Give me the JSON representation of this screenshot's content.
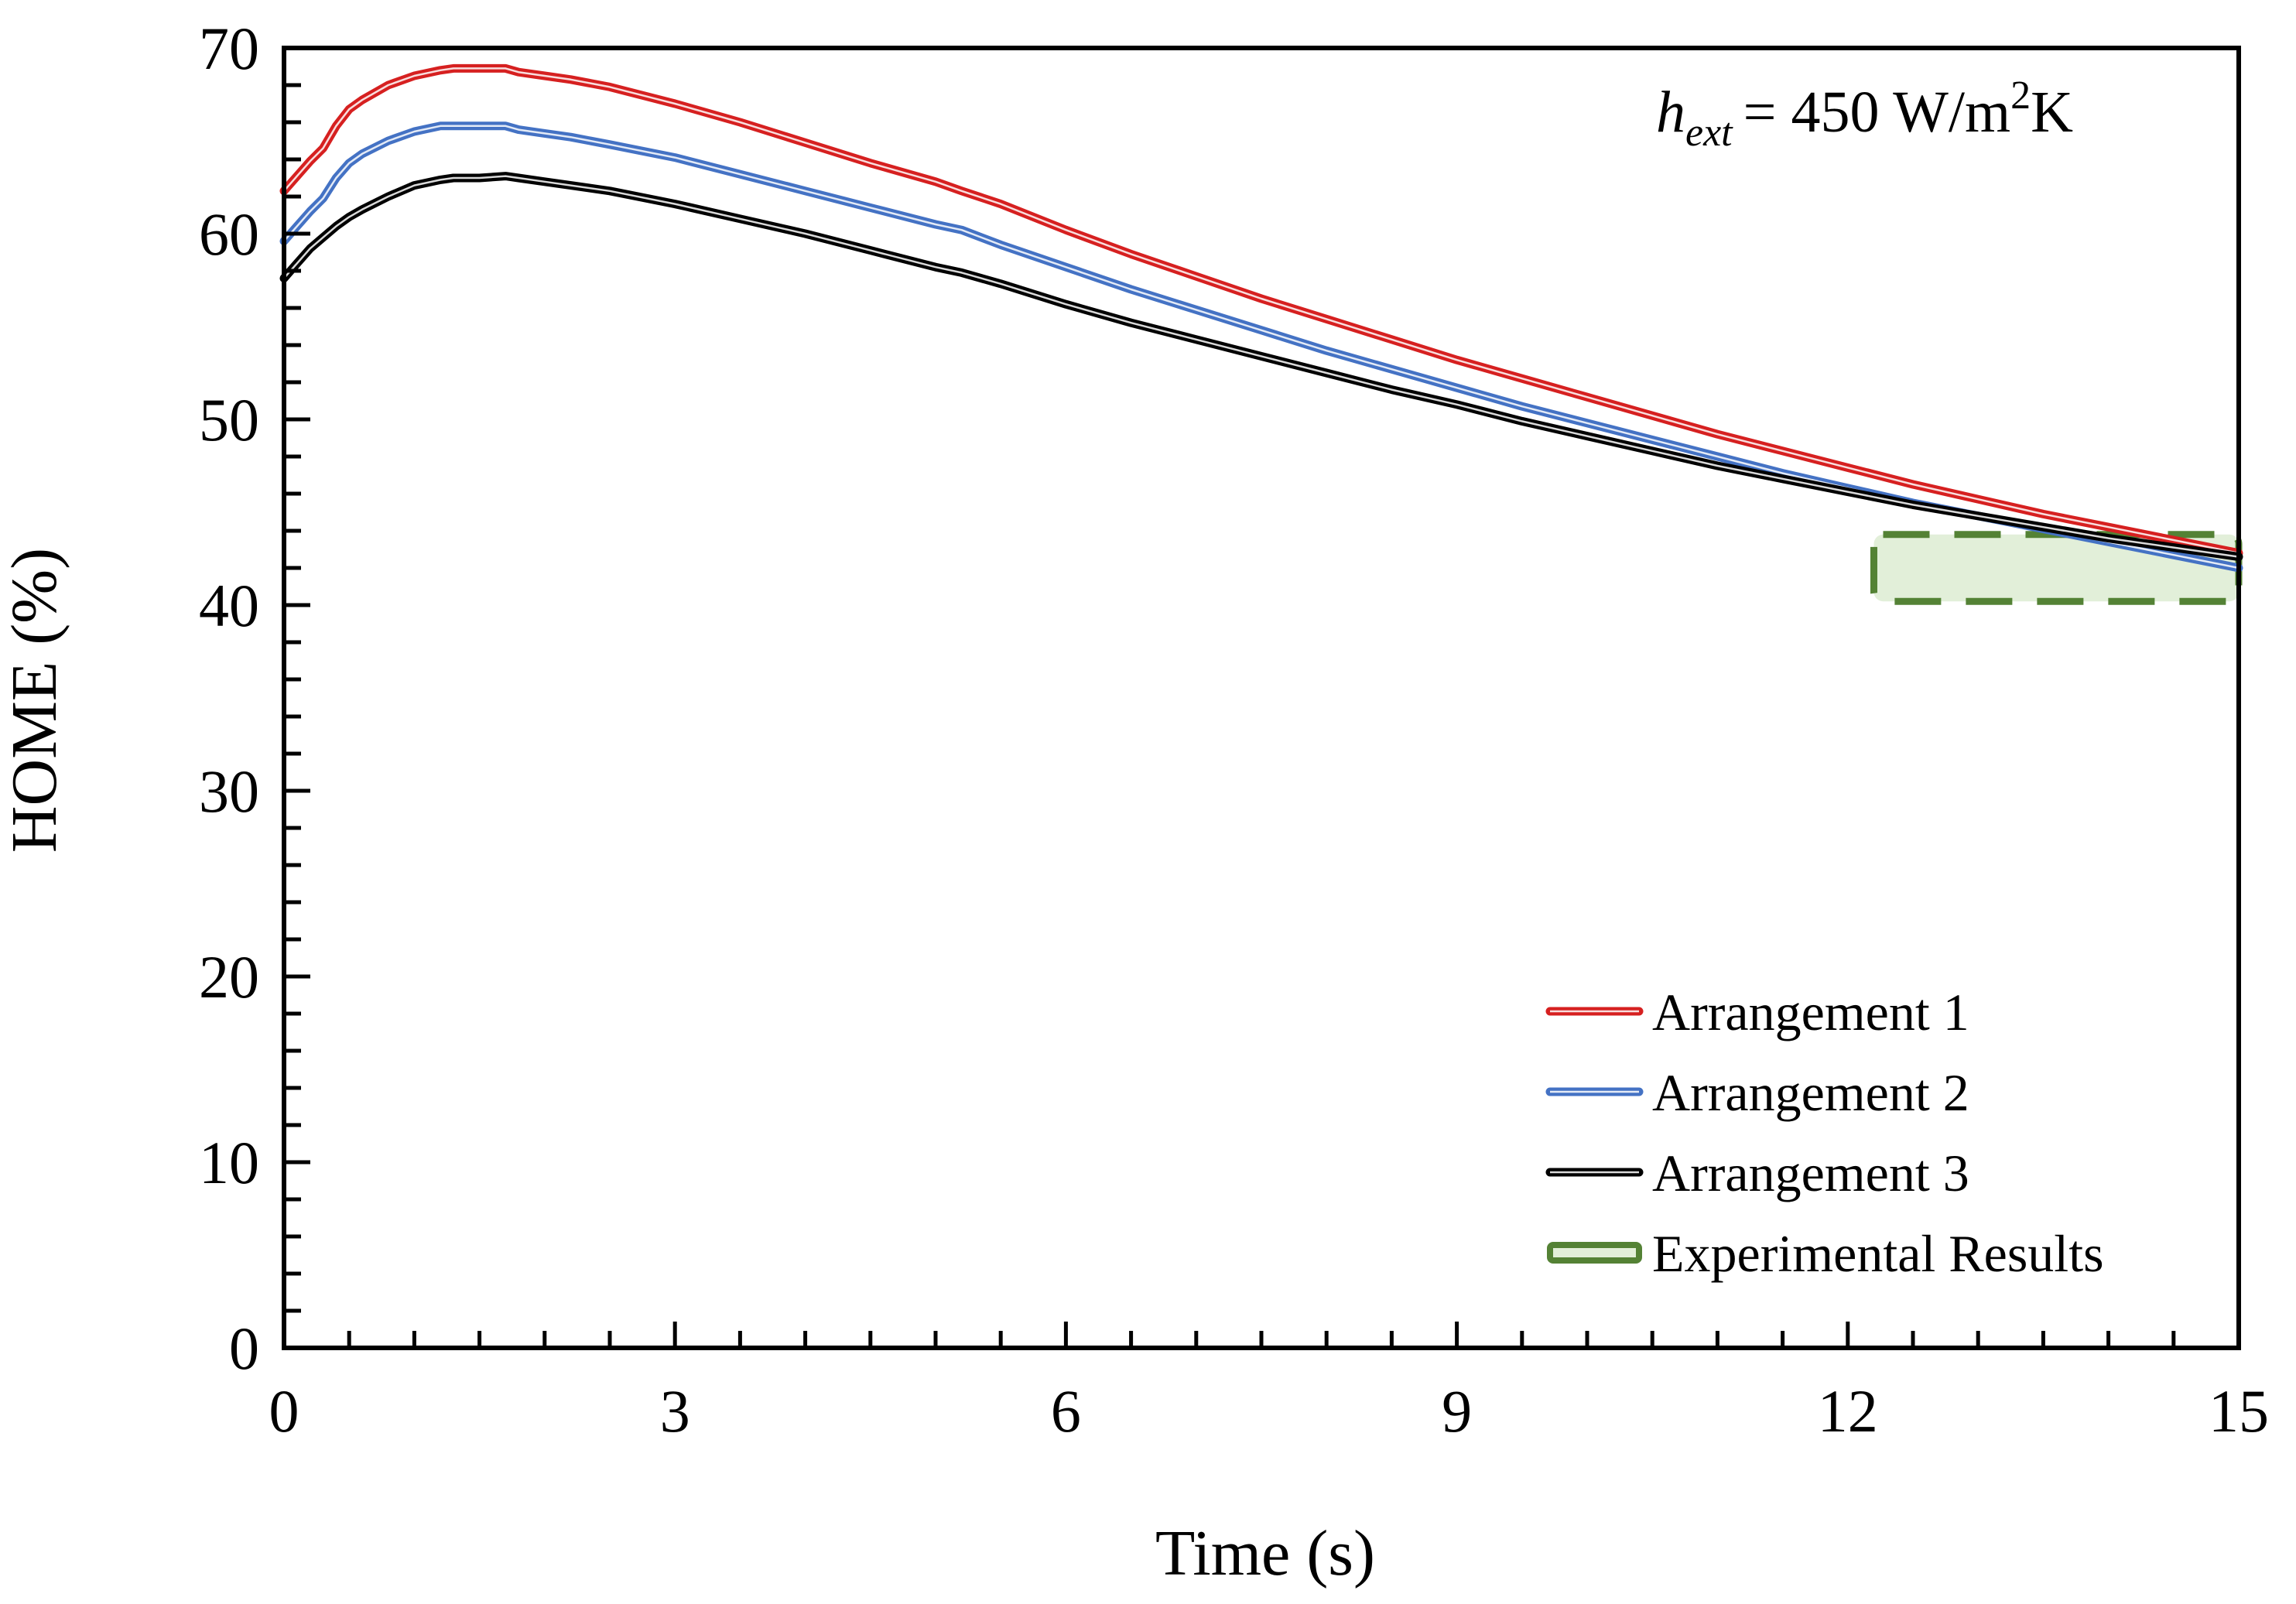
{
  "chart_data": {
    "type": "line",
    "title": "",
    "xlabel": "Time (s)",
    "ylabel": "HOME (%)",
    "xlim": [
      0,
      15
    ],
    "ylim": [
      0,
      70
    ],
    "xticks": [
      0,
      3,
      6,
      9,
      12,
      15
    ],
    "yticks": [
      0,
      10,
      20,
      30,
      40,
      50,
      60,
      70
    ],
    "x_minor_step": 0.5,
    "y_minor_step": 2,
    "grid": false,
    "legend_position": "bottom-right",
    "annotation": {
      "symbol": "h",
      "subscript": "ext",
      "text": "= 450 W/m",
      "superscript": "2",
      "unit_tail": "K"
    },
    "series": [
      {
        "name": "Arrangement 1",
        "color": "#d62020",
        "x": [
          0,
          0.1,
          0.2,
          0.3,
          0.4,
          0.5,
          0.6,
          0.8,
          1.0,
          1.2,
          1.3,
          1.5,
          1.7,
          1.8,
          2.0,
          2.2,
          2.5,
          3.0,
          3.5,
          4.0,
          4.5,
          5.0,
          5.2,
          5.5,
          6.0,
          6.5,
          7.0,
          7.5,
          8.0,
          8.5,
          9.0,
          9.5,
          10.0,
          10.5,
          11.0,
          11.5,
          12.0,
          12.5,
          13.0,
          13.5,
          14.0,
          14.5,
          15.0
        ],
        "y": [
          62.3,
          63.1,
          63.9,
          64.6,
          65.8,
          66.7,
          67.2,
          68.0,
          68.5,
          68.8,
          68.9,
          68.9,
          68.9,
          68.7,
          68.5,
          68.3,
          67.9,
          67.0,
          66.0,
          64.9,
          63.8,
          62.8,
          62.3,
          61.6,
          60.2,
          58.9,
          57.7,
          56.5,
          55.4,
          54.3,
          53.2,
          52.2,
          51.2,
          50.2,
          49.2,
          48.3,
          47.4,
          46.5,
          45.7,
          44.9,
          44.2,
          43.5,
          42.8
        ]
      },
      {
        "name": "Arrangement 2",
        "color": "#4472c4",
        "x": [
          0,
          0.1,
          0.2,
          0.3,
          0.4,
          0.5,
          0.6,
          0.8,
          1.0,
          1.2,
          1.3,
          1.5,
          1.7,
          1.8,
          2.0,
          2.2,
          2.5,
          3.0,
          3.5,
          4.0,
          4.5,
          5.0,
          5.2,
          5.5,
          6.0,
          6.5,
          7.0,
          7.5,
          8.0,
          8.5,
          9.0,
          9.5,
          10.0,
          10.5,
          11.0,
          11.5,
          12.0,
          12.5,
          13.0,
          13.5,
          14.0,
          14.5,
          15.0
        ],
        "y": [
          59.6,
          60.4,
          61.2,
          61.9,
          63.0,
          63.8,
          64.3,
          65.0,
          65.5,
          65.8,
          65.8,
          65.8,
          65.8,
          65.6,
          65.4,
          65.2,
          64.8,
          64.1,
          63.2,
          62.3,
          61.4,
          60.5,
          60.2,
          59.4,
          58.2,
          57.0,
          55.9,
          54.8,
          53.7,
          52.7,
          51.7,
          50.7,
          49.8,
          48.9,
          48.0,
          47.1,
          46.3,
          45.5,
          44.8,
          44.1,
          43.4,
          42.7,
          42.0
        ]
      },
      {
        "name": "Arrangement 3",
        "color": "#000000",
        "x": [
          0,
          0.1,
          0.2,
          0.3,
          0.4,
          0.5,
          0.6,
          0.8,
          1.0,
          1.2,
          1.3,
          1.5,
          1.7,
          1.8,
          2.0,
          2.2,
          2.5,
          3.0,
          3.5,
          4.0,
          4.5,
          5.0,
          5.2,
          5.5,
          6.0,
          6.5,
          7.0,
          7.5,
          8.0,
          8.5,
          9.0,
          9.5,
          10.0,
          10.5,
          11.0,
          11.5,
          12.0,
          12.5,
          13.0,
          13.5,
          14.0,
          14.5,
          15.0
        ],
        "y": [
          57.6,
          58.4,
          59.2,
          59.8,
          60.4,
          60.9,
          61.3,
          62.0,
          62.6,
          62.9,
          63.0,
          63.0,
          63.1,
          63.0,
          62.8,
          62.6,
          62.3,
          61.6,
          60.8,
          60.0,
          59.1,
          58.2,
          57.9,
          57.3,
          56.2,
          55.2,
          54.3,
          53.4,
          52.5,
          51.6,
          50.8,
          49.9,
          49.1,
          48.3,
          47.5,
          46.8,
          46.1,
          45.4,
          44.8,
          44.2,
          43.6,
          43.1,
          42.6
        ]
      },
      {
        "name": "Experimental Results",
        "color": "#548235",
        "fill": "#e2efd9",
        "type": "range",
        "x_range": [
          12.2,
          15.0
        ],
        "y_range": [
          40.2,
          43.8
        ]
      }
    ]
  }
}
